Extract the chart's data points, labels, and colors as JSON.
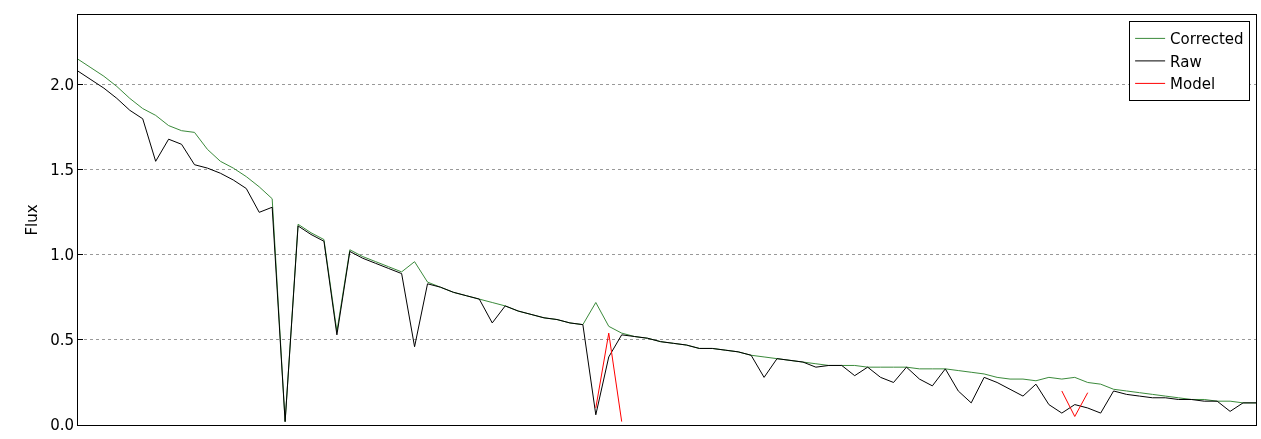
{
  "chart_data": {
    "type": "line",
    "ylabel": "Flux",
    "ylim": [
      0,
      2.41
    ],
    "categories": [
      null,
      null,
      null,
      null,
      null,
      null,
      null,
      null,
      null,
      null,
      null,
      null,
      null,
      null,
      null,
      null,
      null,
      null,
      null,
      null,
      null,
      null,
      null,
      null,
      null,
      null,
      null,
      null,
      null,
      null,
      null,
      null,
      null,
      null,
      null,
      null,
      null,
      null,
      null,
      null,
      null,
      null,
      null,
      null,
      null,
      null,
      null,
      null,
      null,
      null,
      null,
      null,
      null,
      null,
      null,
      null,
      null,
      null,
      null,
      null,
      null,
      null,
      null,
      null,
      null,
      null,
      null,
      null,
      null,
      null,
      null,
      null,
      null,
      null,
      null,
      null,
      null,
      null,
      null,
      null,
      null,
      null,
      null,
      null,
      null,
      null,
      null,
      null,
      null,
      null,
      null,
      null
    ],
    "yticks": [
      {
        "value": 0,
        "label": "0.0"
      },
      0.5,
      {
        "value": 1,
        "label": "1.0"
      },
      1.5,
      {
        "value": 2,
        "label": "2.0"
      }
    ],
    "tick_labels": "y",
    "grid": "y",
    "legend": "top right",
    "line_style": "solid",
    "marker": "none",
    "series": [
      {
        "name": "Corrected",
        "color": "#3b8a3b",
        "values": [
          2.15,
          2.1,
          2.05,
          1.99,
          1.92,
          1.86,
          1.82,
          1.76,
          1.73,
          1.72,
          1.62,
          1.55,
          1.51,
          1.46,
          1.4,
          1.33,
          0.02,
          1.18,
          1.13,
          1.09,
          0.55,
          1.03,
          0.99,
          0.96,
          0.93,
          0.9,
          0.96,
          0.84,
          0.81,
          0.78,
          0.76,
          0.74,
          0.72,
          0.7,
          0.67,
          0.65,
          0.63,
          0.62,
          0.6,
          0.59,
          0.72,
          0.58,
          0.54,
          0.52,
          0.51,
          0.49,
          0.48,
          0.47,
          0.45,
          0.45,
          0.44,
          0.43,
          0.41,
          0.4,
          0.39,
          0.38,
          0.37,
          0.36,
          0.35,
          0.35,
          0.35,
          0.34,
          0.34,
          0.34,
          0.34,
          0.33,
          0.33,
          0.33,
          0.32,
          0.31,
          0.3,
          0.28,
          0.27,
          0.27,
          0.26,
          0.28,
          0.27,
          0.28,
          0.25,
          0.24,
          0.21,
          0.2,
          0.19,
          0.18,
          0.17,
          0.16,
          0.15,
          0.15,
          0.14,
          0.14,
          0.13,
          0.13
        ]
      },
      {
        "name": "Raw",
        "color": "#000000",
        "values": [
          2.08,
          2.03,
          1.98,
          1.92,
          1.85,
          1.8,
          1.55,
          1.68,
          1.65,
          1.53,
          1.51,
          1.48,
          1.44,
          1.39,
          1.25,
          1.28,
          0.02,
          1.17,
          1.12,
          1.08,
          0.53,
          1.02,
          0.98,
          0.95,
          0.92,
          0.89,
          0.46,
          0.83,
          0.81,
          0.78,
          0.76,
          0.74,
          0.6,
          0.7,
          0.67,
          0.65,
          0.63,
          0.62,
          0.6,
          0.59,
          0.06,
          0.4,
          0.53,
          0.52,
          0.51,
          0.49,
          0.48,
          0.47,
          0.45,
          0.45,
          0.44,
          0.43,
          0.41,
          0.28,
          0.39,
          0.38,
          0.37,
          0.34,
          0.35,
          0.35,
          0.29,
          0.34,
          0.28,
          0.25,
          0.34,
          0.27,
          0.23,
          0.33,
          0.2,
          0.13,
          0.28,
          0.25,
          0.21,
          0.17,
          0.24,
          0.12,
          0.07,
          0.12,
          0.1,
          0.07,
          0.2,
          0.18,
          0.17,
          0.16,
          0.16,
          0.15,
          0.15,
          0.14,
          0.14,
          0.08,
          0.13,
          0.13
        ]
      },
      {
        "name": "Model",
        "color": "#ff0000",
        "values": [
          null,
          null,
          null,
          null,
          null,
          null,
          null,
          null,
          null,
          null,
          null,
          null,
          null,
          null,
          null,
          null,
          null,
          null,
          null,
          null,
          null,
          null,
          null,
          null,
          null,
          null,
          null,
          null,
          null,
          null,
          null,
          null,
          null,
          null,
          null,
          null,
          null,
          null,
          null,
          null,
          0.1,
          0.54,
          0.02,
          null,
          null,
          null,
          null,
          null,
          null,
          null,
          null,
          null,
          null,
          null,
          null,
          null,
          null,
          null,
          null,
          null,
          null,
          null,
          null,
          null,
          null,
          null,
          null,
          null,
          null,
          null,
          null,
          null,
          null,
          null,
          null,
          null,
          0.2,
          0.05,
          0.19,
          null,
          null,
          null,
          null,
          null,
          null,
          null,
          null,
          null,
          null,
          null,
          null,
          null
        ]
      }
    ]
  }
}
